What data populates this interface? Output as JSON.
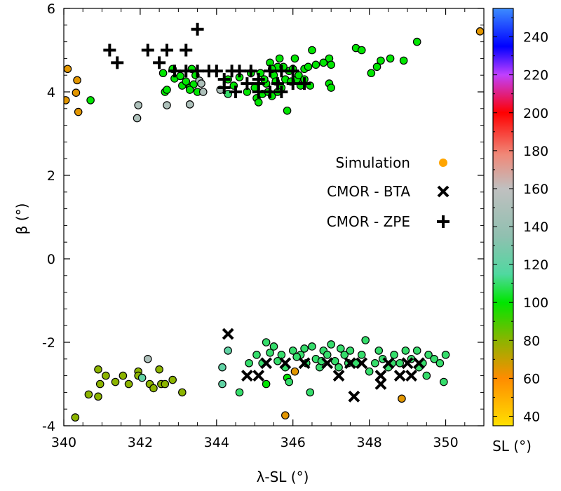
{
  "chart_data": {
    "type": "scatter",
    "xlabel": "λ-SL (°)",
    "ylabel": "β (°)",
    "xlim": [
      340,
      351
    ],
    "ylim": [
      -4,
      6
    ],
    "x_ticks": [
      340,
      342,
      344,
      346,
      348,
      350
    ],
    "x_tick_labels": [
      "340",
      "342",
      "344",
      "346",
      "348",
      "350"
    ],
    "y_ticks": [
      -4,
      -2,
      0,
      2,
      4,
      6
    ],
    "y_tick_labels": [
      "-4",
      "-2",
      "0",
      "2",
      "4",
      "6"
    ],
    "colorbar": {
      "label": "SL (°)",
      "range": [
        35,
        255
      ],
      "ticks": [
        40,
        60,
        80,
        100,
        120,
        140,
        160,
        180,
        200,
        220,
        240
      ],
      "tick_labels": [
        "40",
        "60",
        "80",
        "100",
        "120",
        "140",
        "160",
        "180",
        "200",
        "220",
        "240"
      ],
      "stops": [
        {
          "value": 35,
          "color": "#ffe000"
        },
        {
          "value": 60,
          "color": "#ff8c00"
        },
        {
          "value": 80,
          "color": "#8cb400"
        },
        {
          "value": 100,
          "color": "#00e600"
        },
        {
          "value": 115,
          "color": "#50d8a0"
        },
        {
          "value": 135,
          "color": "#90c0b0"
        },
        {
          "value": 160,
          "color": "#c0c0c0"
        },
        {
          "value": 178,
          "color": "#f08878"
        },
        {
          "value": 200,
          "color": "#ff0000"
        },
        {
          "value": 220,
          "color": "#c040ff"
        },
        {
          "value": 235,
          "color": "#0000ff"
        },
        {
          "value": 255,
          "color": "#3c8cff"
        }
      ]
    },
    "legend": {
      "position": "center-right",
      "items": [
        {
          "label": "Simulation",
          "marker": "circle",
          "color": "#ffa500"
        },
        {
          "label": "CMOR - BTA",
          "marker": "x",
          "color": "#000000"
        },
        {
          "label": "CMOR - ZPE",
          "marker": "plus",
          "color": "#000000"
        }
      ]
    },
    "series": [
      {
        "name": "Simulation",
        "marker": "circle",
        "points": [
          [
            340.05,
            3.8,
            65
          ],
          [
            340.1,
            4.55,
            65
          ],
          [
            340.35,
            4.28,
            65
          ],
          [
            340.32,
            3.98,
            65
          ],
          [
            340.38,
            3.52,
            65
          ],
          [
            340.7,
            3.8,
            100
          ],
          [
            341.95,
            3.68,
            150
          ],
          [
            341.92,
            3.37,
            150
          ],
          [
            342.6,
            4.45,
            100
          ],
          [
            342.65,
            4.0,
            100
          ],
          [
            342.7,
            4.05,
            100
          ],
          [
            342.7,
            3.68,
            150
          ],
          [
            342.85,
            4.55,
            100
          ],
          [
            342.9,
            4.32,
            100
          ],
          [
            343.05,
            4.38,
            100
          ],
          [
            343.1,
            4.15,
            100
          ],
          [
            343.2,
            4.25,
            100
          ],
          [
            343.3,
            4.1,
            100
          ],
          [
            343.4,
            4.18,
            100
          ],
          [
            343.5,
            4.0,
            100
          ],
          [
            343.35,
            4.55,
            100
          ],
          [
            343.45,
            4.4,
            100
          ],
          [
            343.55,
            4.27,
            150
          ],
          [
            343.3,
            4.05,
            100
          ],
          [
            343.3,
            3.7,
            150
          ],
          [
            343.6,
            4.2,
            150
          ],
          [
            343.65,
            4.0,
            150
          ],
          [
            344.1,
            4.05,
            150
          ],
          [
            344.3,
            3.95,
            110
          ],
          [
            344.3,
            4.3,
            100
          ],
          [
            344.45,
            4.15,
            100
          ],
          [
            344.6,
            4.35,
            100
          ],
          [
            344.8,
            4.0,
            100
          ],
          [
            344.9,
            4.45,
            100
          ],
          [
            345.0,
            4.1,
            100
          ],
          [
            345.05,
            3.85,
            100
          ],
          [
            345.1,
            3.75,
            100
          ],
          [
            345.2,
            3.95,
            100
          ],
          [
            345.3,
            4.2,
            100
          ],
          [
            345.4,
            4.7,
            100
          ],
          [
            345.5,
            4.4,
            100
          ],
          [
            345.6,
            4.6,
            100
          ],
          [
            345.7,
            4.1,
            100
          ],
          [
            345.8,
            4.3,
            100
          ],
          [
            345.85,
            3.55,
            100
          ],
          [
            345.9,
            4.5,
            100
          ],
          [
            346.0,
            4.55,
            100
          ],
          [
            346.05,
            4.8,
            100
          ],
          [
            346.1,
            4.3,
            100
          ],
          [
            346.2,
            4.15,
            100
          ],
          [
            346.3,
            4.55,
            100
          ],
          [
            346.4,
            4.6,
            100
          ],
          [
            346.5,
            5.0,
            100
          ],
          [
            346.6,
            4.65,
            100
          ],
          [
            346.8,
            4.7,
            100
          ],
          [
            346.95,
            4.8,
            100
          ],
          [
            347.0,
            4.65,
            100
          ],
          [
            346.95,
            4.2,
            100
          ],
          [
            347.0,
            4.1,
            100
          ],
          [
            347.65,
            5.05,
            100
          ],
          [
            347.8,
            5.0,
            100
          ],
          [
            348.05,
            4.45,
            100
          ],
          [
            348.2,
            4.6,
            100
          ],
          [
            348.3,
            4.75,
            100
          ],
          [
            348.55,
            4.8,
            100
          ],
          [
            348.9,
            4.75,
            100
          ],
          [
            349.25,
            5.2,
            100
          ],
          [
            345.15,
            4.45,
            100
          ],
          [
            345.25,
            4.3,
            100
          ],
          [
            345.45,
            4.55,
            100
          ],
          [
            345.55,
            4.25,
            100
          ],
          [
            345.65,
            4.8,
            100
          ],
          [
            345.75,
            4.6,
            100
          ],
          [
            345.95,
            4.25,
            100
          ],
          [
            346.15,
            4.4,
            100
          ],
          [
            345.35,
            4.0,
            100
          ],
          [
            345.45,
            3.9,
            100
          ],
          [
            345.6,
            4.0,
            100
          ],
          [
            346.3,
            4.3,
            100
          ],
          [
            346.45,
            4.15,
            100
          ],
          [
            350.9,
            5.45,
            65
          ],
          [
            340.3,
            -3.8,
            80
          ],
          [
            340.65,
            -3.25,
            80
          ],
          [
            340.9,
            -3.3,
            80
          ],
          [
            340.9,
            -2.65,
            80
          ],
          [
            340.95,
            -3.0,
            80
          ],
          [
            341.1,
            -2.8,
            80
          ],
          [
            341.35,
            -2.95,
            80
          ],
          [
            341.55,
            -2.8,
            80
          ],
          [
            341.7,
            -3.0,
            80
          ],
          [
            341.95,
            -2.7,
            80
          ],
          [
            341.95,
            -2.8,
            80
          ],
          [
            342.05,
            -2.85,
            120
          ],
          [
            342.2,
            -2.4,
            150
          ],
          [
            342.25,
            -3.0,
            80
          ],
          [
            342.35,
            -3.1,
            80
          ],
          [
            342.5,
            -2.65,
            80
          ],
          [
            342.55,
            -3.0,
            80
          ],
          [
            342.65,
            -3.0,
            80
          ],
          [
            342.85,
            -2.9,
            80
          ],
          [
            343.1,
            -3.2,
            80
          ],
          [
            344.15,
            -2.6,
            120
          ],
          [
            344.15,
            -3.0,
            120
          ],
          [
            344.3,
            -2.2,
            120
          ],
          [
            344.6,
            -3.2,
            110
          ],
          [
            344.85,
            -2.5,
            110
          ],
          [
            345.05,
            -2.3,
            110
          ],
          [
            345.2,
            -2.5,
            110
          ],
          [
            345.3,
            -2.0,
            110
          ],
          [
            345.3,
            -3.0,
            100
          ],
          [
            345.5,
            -2.1,
            110
          ],
          [
            345.7,
            -2.3,
            110
          ],
          [
            345.8,
            -2.6,
            110
          ],
          [
            345.85,
            -2.85,
            100
          ],
          [
            345.9,
            -2.95,
            110
          ],
          [
            346.0,
            -2.2,
            110
          ],
          [
            346.05,
            -2.7,
            65
          ],
          [
            346.2,
            -2.3,
            110
          ],
          [
            346.35,
            -2.5,
            110
          ],
          [
            346.5,
            -2.1,
            110
          ],
          [
            346.6,
            -2.4,
            110
          ],
          [
            346.7,
            -2.6,
            110
          ],
          [
            346.8,
            -2.2,
            110
          ],
          [
            346.9,
            -2.3,
            110
          ],
          [
            347.0,
            -2.05,
            110
          ],
          [
            347.1,
            -2.45,
            110
          ],
          [
            347.2,
            -2.6,
            110
          ],
          [
            347.35,
            -2.3,
            110
          ],
          [
            347.5,
            -2.2,
            110
          ],
          [
            347.65,
            -2.5,
            110
          ],
          [
            347.8,
            -2.3,
            110
          ],
          [
            347.9,
            -1.95,
            110
          ],
          [
            348.0,
            -2.7,
            110
          ],
          [
            348.15,
            -2.5,
            110
          ],
          [
            348.25,
            -2.2,
            110
          ],
          [
            348.35,
            -2.4,
            110
          ],
          [
            348.5,
            -2.6,
            110
          ],
          [
            348.65,
            -2.3,
            110
          ],
          [
            348.8,
            -2.5,
            110
          ],
          [
            348.95,
            -2.2,
            110
          ],
          [
            349.1,
            -2.4,
            110
          ],
          [
            349.25,
            -2.2,
            110
          ],
          [
            349.4,
            -2.5,
            110
          ],
          [
            349.55,
            -2.3,
            110
          ],
          [
            349.7,
            -2.4,
            110
          ],
          [
            349.85,
            -2.5,
            110
          ],
          [
            350.0,
            -2.3,
            110
          ],
          [
            349.95,
            -2.95,
            110
          ],
          [
            349.5,
            -2.8,
            110
          ],
          [
            346.45,
            -3.2,
            110
          ],
          [
            348.85,
            -3.35,
            65
          ],
          [
            345.8,
            -3.75,
            65
          ],
          [
            345.4,
            -2.25,
            110
          ],
          [
            345.6,
            -2.45,
            110
          ],
          [
            346.1,
            -2.35,
            110
          ],
          [
            346.3,
            -2.15,
            110
          ],
          [
            346.75,
            -2.45,
            110
          ],
          [
            347.25,
            -2.15,
            110
          ],
          [
            347.45,
            -2.5,
            110
          ],
          [
            348.6,
            -2.5,
            110
          ],
          [
            349.3,
            -2.6,
            110
          ]
        ]
      },
      {
        "name": "CMOR - BTA",
        "marker": "x",
        "points": [
          [
            344.3,
            -1.8
          ],
          [
            344.8,
            -2.8
          ],
          [
            345.1,
            -2.8
          ],
          [
            345.3,
            -2.5
          ],
          [
            345.8,
            -2.5
          ],
          [
            346.3,
            -2.5
          ],
          [
            346.9,
            -2.5
          ],
          [
            347.2,
            -2.8
          ],
          [
            347.5,
            -2.5
          ],
          [
            347.6,
            -3.3
          ],
          [
            347.8,
            -2.5
          ],
          [
            348.3,
            -2.8
          ],
          [
            348.3,
            -3.0
          ],
          [
            348.5,
            -2.5
          ],
          [
            348.8,
            -2.8
          ],
          [
            349.0,
            -2.5
          ],
          [
            349.3,
            -2.5
          ],
          [
            349.1,
            -2.8
          ]
        ]
      },
      {
        "name": "CMOR - ZPE",
        "marker": "plus",
        "points": [
          [
            341.2,
            5.0
          ],
          [
            341.4,
            4.7
          ],
          [
            342.2,
            5.0
          ],
          [
            342.5,
            4.7
          ],
          [
            342.7,
            5.0
          ],
          [
            343.2,
            5.0
          ],
          [
            343.5,
            5.5
          ],
          [
            342.9,
            4.5
          ],
          [
            343.2,
            4.5
          ],
          [
            343.5,
            4.5
          ],
          [
            343.8,
            4.5
          ],
          [
            344.0,
            4.5
          ],
          [
            344.2,
            4.3
          ],
          [
            344.4,
            4.5
          ],
          [
            344.6,
            4.5
          ],
          [
            344.9,
            4.5
          ],
          [
            345.1,
            4.3
          ],
          [
            345.4,
            4.5
          ],
          [
            345.7,
            4.5
          ],
          [
            346.0,
            4.5
          ],
          [
            344.2,
            4.1
          ],
          [
            344.5,
            4.0
          ],
          [
            344.8,
            4.2
          ],
          [
            345.1,
            4.0
          ],
          [
            345.4,
            4.0
          ],
          [
            345.7,
            4.0
          ],
          [
            346.0,
            4.2
          ],
          [
            346.3,
            4.2
          ],
          [
            345.1,
            4.2
          ],
          [
            345.6,
            4.2
          ]
        ]
      }
    ]
  }
}
